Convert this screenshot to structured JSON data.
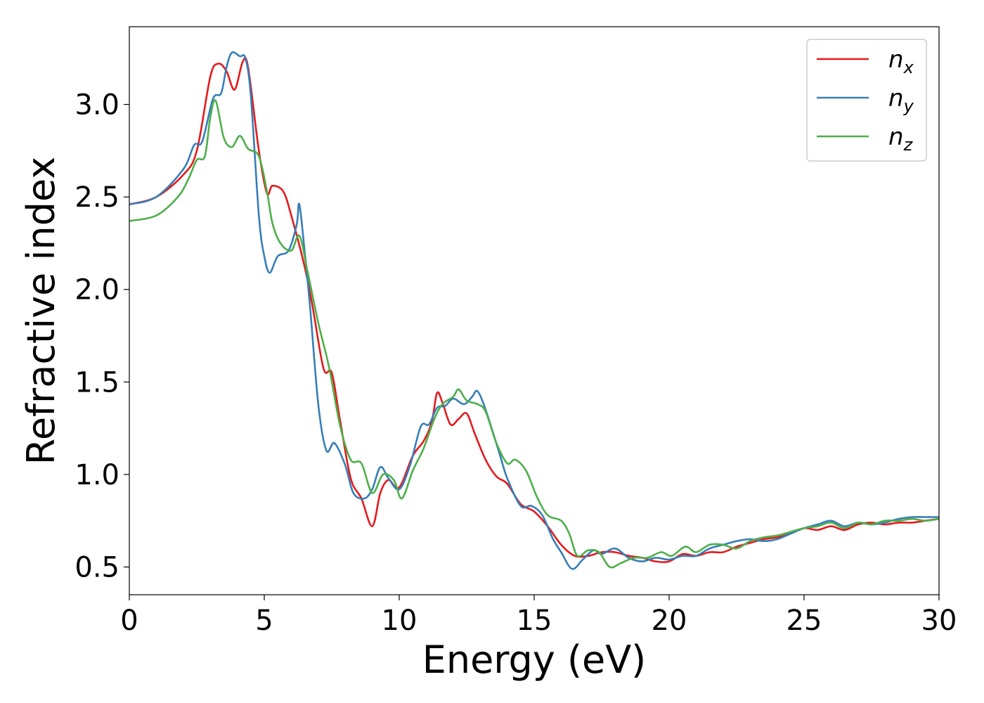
{
  "chart_data": {
    "type": "line",
    "xlabel": "Energy (eV)",
    "ylabel": "Refractive index",
    "xlim": [
      0,
      30
    ],
    "ylim": [
      0.35,
      3.42
    ],
    "xticks": [
      0,
      5,
      10,
      15,
      20,
      25,
      30
    ],
    "xtick_labels": [
      "0",
      "5",
      "10",
      "15",
      "20",
      "25",
      "30"
    ],
    "yticks": [
      0.5,
      1.0,
      1.5,
      2.0,
      2.5,
      3.0
    ],
    "ytick_labels": [
      "0.5",
      "1.0",
      "1.5",
      "2.0",
      "2.5",
      "3.0"
    ],
    "grid": false,
    "legend": {
      "position": "top-right"
    },
    "series": [
      {
        "name": "n_x",
        "label_base": "n",
        "label_sub": "x",
        "color": "#e41a1c",
        "points": [
          [
            0,
            2.46
          ],
          [
            1,
            2.5
          ],
          [
            2,
            2.62
          ],
          [
            2.5,
            2.75
          ],
          [
            3,
            3.15
          ],
          [
            3.3,
            3.22
          ],
          [
            3.6,
            3.18
          ],
          [
            3.9,
            3.08
          ],
          [
            4.2,
            3.23
          ],
          [
            4.4,
            3.2
          ],
          [
            4.8,
            2.75
          ],
          [
            5.1,
            2.52
          ],
          [
            5.3,
            2.56
          ],
          [
            5.7,
            2.53
          ],
          [
            6.0,
            2.4
          ],
          [
            6.5,
            2.12
          ],
          [
            6.8,
            1.9
          ],
          [
            7.2,
            1.57
          ],
          [
            7.5,
            1.55
          ],
          [
            7.8,
            1.3
          ],
          [
            8.2,
            0.98
          ],
          [
            8.6,
            0.87
          ],
          [
            9.0,
            0.72
          ],
          [
            9.3,
            0.9
          ],
          [
            9.6,
            0.97
          ],
          [
            10,
            0.93
          ],
          [
            10.5,
            1.1
          ],
          [
            10.9,
            1.18
          ],
          [
            11.2,
            1.28
          ],
          [
            11.4,
            1.44
          ],
          [
            11.6,
            1.39
          ],
          [
            11.9,
            1.27
          ],
          [
            12.2,
            1.3
          ],
          [
            12.5,
            1.33
          ],
          [
            12.8,
            1.22
          ],
          [
            13.2,
            1.08
          ],
          [
            13.6,
            0.99
          ],
          [
            14,
            0.95
          ],
          [
            14.5,
            0.84
          ],
          [
            15,
            0.8
          ],
          [
            15.5,
            0.72
          ],
          [
            16,
            0.62
          ],
          [
            16.5,
            0.56
          ],
          [
            17,
            0.56
          ],
          [
            17.5,
            0.58
          ],
          [
            18,
            0.58
          ],
          [
            18.5,
            0.56
          ],
          [
            19,
            0.55
          ],
          [
            19.5,
            0.53
          ],
          [
            20,
            0.53
          ],
          [
            20.5,
            0.57
          ],
          [
            21,
            0.56
          ],
          [
            21.5,
            0.58
          ],
          [
            22,
            0.58
          ],
          [
            22.5,
            0.61
          ],
          [
            23,
            0.63
          ],
          [
            23.5,
            0.65
          ],
          [
            24,
            0.66
          ],
          [
            24.5,
            0.68
          ],
          [
            25,
            0.71
          ],
          [
            25.5,
            0.7
          ],
          [
            26,
            0.72
          ],
          [
            26.5,
            0.7
          ],
          [
            27,
            0.73
          ],
          [
            27.5,
            0.74
          ],
          [
            28,
            0.73
          ],
          [
            28.5,
            0.74
          ],
          [
            29,
            0.74
          ],
          [
            29.5,
            0.75
          ],
          [
            30,
            0.76
          ]
        ]
      },
      {
        "name": "n_y",
        "label_base": "n",
        "label_sub": "y",
        "color": "#377eb8",
        "points": [
          [
            0,
            2.46
          ],
          [
            1,
            2.5
          ],
          [
            2,
            2.65
          ],
          [
            2.4,
            2.78
          ],
          [
            2.7,
            2.8
          ],
          [
            3.1,
            3.03
          ],
          [
            3.4,
            3.06
          ],
          [
            3.6,
            3.2
          ],
          [
            3.8,
            3.28
          ],
          [
            4.1,
            3.26
          ],
          [
            4.3,
            3.25
          ],
          [
            4.5,
            3.05
          ],
          [
            4.8,
            2.4
          ],
          [
            5.0,
            2.18
          ],
          [
            5.2,
            2.09
          ],
          [
            5.5,
            2.18
          ],
          [
            5.9,
            2.21
          ],
          [
            6.2,
            2.35
          ],
          [
            6.3,
            2.46
          ],
          [
            6.5,
            2.2
          ],
          [
            6.7,
            1.9
          ],
          [
            7.0,
            1.38
          ],
          [
            7.3,
            1.13
          ],
          [
            7.6,
            1.17
          ],
          [
            8.0,
            1.05
          ],
          [
            8.3,
            0.9
          ],
          [
            8.7,
            0.87
          ],
          [
            9.0,
            0.92
          ],
          [
            9.3,
            1.04
          ],
          [
            9.6,
            0.98
          ],
          [
            10,
            0.92
          ],
          [
            10.4,
            1.05
          ],
          [
            10.8,
            1.26
          ],
          [
            11.1,
            1.27
          ],
          [
            11.4,
            1.36
          ],
          [
            11.7,
            1.37
          ],
          [
            12.0,
            1.41
          ],
          [
            12.4,
            1.38
          ],
          [
            12.7,
            1.42
          ],
          [
            12.9,
            1.45
          ],
          [
            13.2,
            1.35
          ],
          [
            13.7,
            1.12
          ],
          [
            14.0,
            0.98
          ],
          [
            14.5,
            0.83
          ],
          [
            14.9,
            0.83
          ],
          [
            15.3,
            0.78
          ],
          [
            15.7,
            0.65
          ],
          [
            16.0,
            0.58
          ],
          [
            16.4,
            0.49
          ],
          [
            16.8,
            0.54
          ],
          [
            17.2,
            0.59
          ],
          [
            17.5,
            0.57
          ],
          [
            18,
            0.6
          ],
          [
            18.5,
            0.55
          ],
          [
            19,
            0.53
          ],
          [
            19.5,
            0.55
          ],
          [
            20,
            0.54
          ],
          [
            20.5,
            0.56
          ],
          [
            21,
            0.56
          ],
          [
            21.5,
            0.6
          ],
          [
            22,
            0.62
          ],
          [
            22.5,
            0.64
          ],
          [
            23,
            0.65
          ],
          [
            23.5,
            0.64
          ],
          [
            24,
            0.65
          ],
          [
            24.5,
            0.68
          ],
          [
            25,
            0.71
          ],
          [
            25.5,
            0.73
          ],
          [
            26,
            0.75
          ],
          [
            26.5,
            0.72
          ],
          [
            27,
            0.74
          ],
          [
            27.5,
            0.73
          ],
          [
            28,
            0.74
          ],
          [
            28.5,
            0.76
          ],
          [
            29,
            0.77
          ],
          [
            29.5,
            0.77
          ],
          [
            30,
            0.77
          ]
        ]
      },
      {
        "name": "n_z",
        "label_base": "n",
        "label_sub": "z",
        "color": "#4daf4a",
        "points": [
          [
            0,
            2.37
          ],
          [
            1,
            2.4
          ],
          [
            1.8,
            2.5
          ],
          [
            2.2,
            2.6
          ],
          [
            2.5,
            2.7
          ],
          [
            2.8,
            2.72
          ],
          [
            3.0,
            2.93
          ],
          [
            3.2,
            3.02
          ],
          [
            3.5,
            2.82
          ],
          [
            3.8,
            2.77
          ],
          [
            4.1,
            2.83
          ],
          [
            4.4,
            2.76
          ],
          [
            4.8,
            2.72
          ],
          [
            5.1,
            2.53
          ],
          [
            5.3,
            2.36
          ],
          [
            5.6,
            2.25
          ],
          [
            6.0,
            2.21
          ],
          [
            6.3,
            2.29
          ],
          [
            6.6,
            2.1
          ],
          [
            7.0,
            1.82
          ],
          [
            7.4,
            1.58
          ],
          [
            7.8,
            1.27
          ],
          [
            8.2,
            1.08
          ],
          [
            8.6,
            1.06
          ],
          [
            9.0,
            0.9
          ],
          [
            9.4,
            1.0
          ],
          [
            9.8,
            0.97
          ],
          [
            10.1,
            0.87
          ],
          [
            10.5,
            1.02
          ],
          [
            10.9,
            1.14
          ],
          [
            11.3,
            1.3
          ],
          [
            11.6,
            1.38
          ],
          [
            12.0,
            1.42
          ],
          [
            12.2,
            1.46
          ],
          [
            12.5,
            1.4
          ],
          [
            12.9,
            1.38
          ],
          [
            13.2,
            1.34
          ],
          [
            13.6,
            1.17
          ],
          [
            14.0,
            1.06
          ],
          [
            14.3,
            1.08
          ],
          [
            14.7,
            1.02
          ],
          [
            15.1,
            0.88
          ],
          [
            15.5,
            0.78
          ],
          [
            16.0,
            0.75
          ],
          [
            16.3,
            0.68
          ],
          [
            16.6,
            0.56
          ],
          [
            17,
            0.59
          ],
          [
            17.4,
            0.58
          ],
          [
            17.8,
            0.5
          ],
          [
            18.2,
            0.52
          ],
          [
            18.7,
            0.55
          ],
          [
            19.2,
            0.55
          ],
          [
            19.7,
            0.58
          ],
          [
            20.1,
            0.56
          ],
          [
            20.6,
            0.61
          ],
          [
            21,
            0.58
          ],
          [
            21.5,
            0.62
          ],
          [
            22,
            0.62
          ],
          [
            22.5,
            0.6
          ],
          [
            23,
            0.64
          ],
          [
            23.5,
            0.66
          ],
          [
            24,
            0.67
          ],
          [
            24.5,
            0.69
          ],
          [
            25,
            0.71
          ],
          [
            25.5,
            0.72
          ],
          [
            26,
            0.74
          ],
          [
            26.5,
            0.71
          ],
          [
            27,
            0.74
          ],
          [
            27.5,
            0.73
          ],
          [
            28,
            0.75
          ],
          [
            28.5,
            0.75
          ],
          [
            29,
            0.76
          ],
          [
            29.5,
            0.75
          ],
          [
            30,
            0.76
          ]
        ]
      }
    ]
  }
}
